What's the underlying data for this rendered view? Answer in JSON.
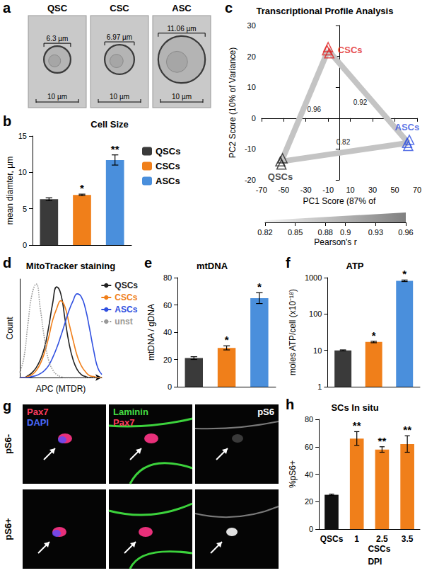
{
  "images_a": {
    "panel": "a",
    "cells": [
      {
        "label": "QSC",
        "diameter": 6.3,
        "unit": "µm",
        "scale_bar": 10
      },
      {
        "label": "CSC",
        "diameter": 6.97,
        "unit": "µm",
        "scale_bar": 10
      },
      {
        "label": "ASC",
        "diameter": 11.06,
        "unit": "µm",
        "scale_bar": 10
      }
    ]
  },
  "images_g": {
    "panel": "g",
    "rows": [
      "pS6-",
      "pS6+"
    ],
    "columns": [
      [
        {
          "text": "Pax7",
          "color": "#ff3b5c"
        },
        {
          "text": "DAPI",
          "color": "#4a6bff"
        }
      ],
      [
        {
          "text": "Laminin",
          "color": "#44dd44"
        },
        {
          "text": "Pax7",
          "color": "#ff3b5c"
        }
      ],
      [
        {
          "text": "pS6",
          "color": "#ffffff"
        }
      ]
    ]
  },
  "chart_data": [
    {
      "panel": "b",
      "type": "bar",
      "title": "Cell Size",
      "ylabel": "mean diamter, µm",
      "categories": [
        "QSCs",
        "CSCs",
        "ASCs"
      ],
      "values": [
        6.3,
        6.9,
        11.7
      ],
      "errors": [
        0.2,
        0.1,
        0.7
      ],
      "significance": [
        null,
        "*",
        "**"
      ],
      "colors": [
        "#3a3a3a",
        "#f07f1a",
        "#4a8fdc"
      ],
      "ylim": [
        0,
        15
      ],
      "yticks": [
        0,
        5,
        10,
        15
      ],
      "legend": "right",
      "tick_labels": "y"
    },
    {
      "panel": "c",
      "type": "scatter",
      "title": "Transcriptional Profile Analysis",
      "xlabel": "PC1 Score (87% of",
      "ylabel": "PC2 Score (10% of Variance)",
      "marker": "triangle",
      "series": [
        {
          "name": "QSCs",
          "color": "#222222",
          "x": [
            -53,
            -51,
            -52
          ],
          "y": [
            -14,
            -13,
            -15
          ]
        },
        {
          "name": "CSCs",
          "color": "#e02020",
          "x": [
            -11,
            -9,
            -10
          ],
          "y": [
            22,
            21,
            23
          ]
        },
        {
          "name": "ASCs",
          "color": "#3050e0",
          "x": [
            61,
            63,
            62
          ],
          "y": [
            -8,
            -7,
            -9
          ]
        }
      ],
      "edges": [
        {
          "from": "QSCs",
          "to": "CSCs",
          "r": 0.96
        },
        {
          "from": "CSCs",
          "to": "ASCs",
          "r": 0.92
        },
        {
          "from": "QSCs",
          "to": "ASCs",
          "r": 0.82
        }
      ],
      "xlim": [
        -70,
        70
      ],
      "xticks": [
        -70,
        -50,
        -30,
        -10,
        10,
        30,
        50,
        70
      ],
      "ylim": [
        -20,
        30
      ],
      "yticks": [
        -20,
        -10,
        0,
        10,
        20,
        30
      ],
      "colorbar": {
        "label": "Pearson's r",
        "range": [
          0.82,
          0.96
        ],
        "ticks": [
          0.82,
          0.85,
          0.88,
          0.9,
          0.93,
          0.96
        ]
      }
    },
    {
      "panel": "d",
      "type": "line",
      "title": "MitoTracker staining",
      "xlabel": "APC (MTDR)",
      "ylabel": "Count",
      "x": [
        0,
        5,
        10,
        15,
        20,
        25,
        30,
        35,
        40,
        45,
        50,
        55,
        60,
        65,
        70,
        75,
        80,
        85,
        90,
        95,
        100
      ],
      "series": [
        {
          "name": "QSCs",
          "color": "#222222",
          "values": [
            0,
            0,
            2,
            5,
            10,
            18,
            30,
            50,
            75,
            92,
            85,
            60,
            35,
            18,
            8,
            3,
            1,
            0,
            0,
            0,
            0
          ]
        },
        {
          "name": "CSCs",
          "color": "#f07f1a",
          "values": [
            0,
            0,
            1,
            3,
            7,
            14,
            25,
            40,
            58,
            70,
            78,
            72,
            55,
            38,
            22,
            12,
            6,
            2,
            1,
            0,
            0
          ]
        },
        {
          "name": "ASCs",
          "color": "#3050e0",
          "values": [
            0,
            0,
            0,
            1,
            2,
            4,
            7,
            12,
            20,
            30,
            42,
            55,
            68,
            78,
            85,
            82,
            70,
            50,
            28,
            10,
            3
          ]
        },
        {
          "name": "unst",
          "color": "#999999",
          "line_style": "dotted",
          "values": [
            5,
            20,
            55,
            85,
            95,
            70,
            40,
            18,
            8,
            3,
            1,
            0,
            0,
            0,
            0,
            0,
            0,
            0,
            0,
            0,
            0
          ]
        }
      ],
      "xlim": [
        0,
        100
      ],
      "ylim": [
        0,
        100
      ],
      "tick_labels": false,
      "legend": "right"
    },
    {
      "panel": "e",
      "type": "bar",
      "title": "mtDNA",
      "ylabel": "mtDNA / gDNA",
      "categories": [
        "QSCs",
        "CSCs",
        "ASCs"
      ],
      "values": [
        21,
        28.5,
        65
      ],
      "errors": [
        1,
        1.5,
        4
      ],
      "significance": [
        null,
        "*",
        "*"
      ],
      "colors": [
        "#3a3a3a",
        "#f07f1a",
        "#4a8fdc"
      ],
      "ylim": [
        0,
        80
      ],
      "yticks": [
        0,
        20,
        40,
        60,
        80
      ],
      "tick_labels": "y"
    },
    {
      "panel": "f",
      "type": "bar",
      "title": "ATP",
      "ylabel": "moles ATP/cell (x10⁻¹⁸)",
      "categories": [
        "QSCs",
        "CSCs",
        "ASCs"
      ],
      "values": [
        10,
        17,
        820
      ],
      "errors": [
        0.3,
        0.8,
        40
      ],
      "significance": [
        null,
        "*",
        "*"
      ],
      "colors": [
        "#3a3a3a",
        "#f07f1a",
        "#4a8fdc"
      ],
      "log": "y",
      "ylim": [
        1,
        1000
      ],
      "yticks": [
        1,
        10,
        100,
        1000
      ],
      "tick_labels": "y"
    },
    {
      "panel": "h",
      "type": "bar",
      "title": "SCs In situ",
      "ylabel": "%pS6+",
      "xlabel": "DPI",
      "categories": [
        "QSCs",
        "1",
        "2.5",
        "3.5"
      ],
      "groups": [
        {
          "label": "CSCs",
          "categories": [
            "1",
            "2.5",
            "3.5"
          ]
        }
      ],
      "values": [
        25,
        66,
        58,
        62
      ],
      "errors": [
        0.5,
        5,
        2,
        6
      ],
      "significance": [
        null,
        "**",
        "**",
        "**"
      ],
      "colors": [
        "#111111",
        "#f07f1a",
        "#f07f1a",
        "#f07f1a"
      ],
      "ylim": [
        0,
        80
      ],
      "yticks": [
        0,
        20,
        40,
        60,
        80
      ]
    }
  ]
}
